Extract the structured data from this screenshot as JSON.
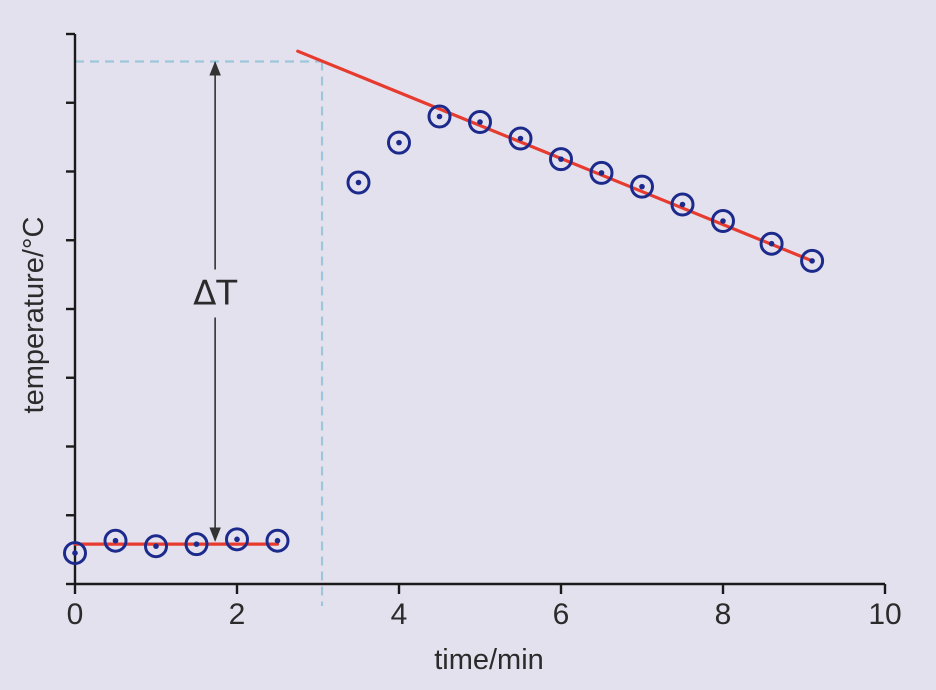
{
  "chart_data": {
    "type": "scatter",
    "xlabel": "time/min",
    "ylabel": "temperature/°C",
    "xlim": [
      0,
      10
    ],
    "ylim": [
      0,
      8
    ],
    "x_ticks": [
      0,
      2,
      4,
      6,
      8,
      10
    ],
    "y_ticks": [
      0,
      1,
      2,
      3,
      4,
      5,
      6,
      7,
      8
    ],
    "y_tick_labels_shown": false,
    "grid": false,
    "legend": "none",
    "series": [
      {
        "x": [
          0,
          0.5,
          1,
          1.5,
          2,
          2.5,
          3.5,
          4,
          4.5,
          5,
          5.5,
          6,
          6.5,
          7,
          7.5,
          8,
          8.6,
          9.1
        ],
        "y": [
          0.45,
          0.63,
          0.55,
          0.58,
          0.65,
          0.63,
          5.84,
          6.42,
          6.8,
          6.72,
          6.48,
          6.18,
          5.98,
          5.78,
          5.52,
          5.28,
          4.95,
          4.7
        ],
        "marker": "circled-dot",
        "color": "#1c2a8c"
      }
    ],
    "fit_lines": [
      {
        "x": [
          0,
          2.5
        ],
        "y": [
          0.58,
          0.58
        ],
        "color": "#e63b2e"
      },
      {
        "x": [
          2.75,
          9.1
        ],
        "y": [
          7.75,
          4.7
        ],
        "color": "#e63b2e"
      }
    ],
    "reference_lines": {
      "vertical_x": 3.05,
      "horizontal_y": 7.6,
      "style": "dashed",
      "color": "#9cc6dc"
    },
    "annotations": [
      {
        "text": "ΔT",
        "type": "double-arrow",
        "x": 1.73,
        "y_from": 0.62,
        "y_to": 7.6
      }
    ]
  }
}
